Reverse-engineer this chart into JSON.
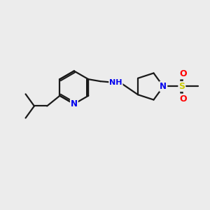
{
  "background_color": "#ececec",
  "bond_color": "#1a1a1a",
  "bond_width": 1.6,
  "atom_colors": {
    "N": "#0000ee",
    "S": "#cccc00",
    "O": "#ff0000",
    "C": "#1a1a1a"
  },
  "font_size_atom": 8.5
}
